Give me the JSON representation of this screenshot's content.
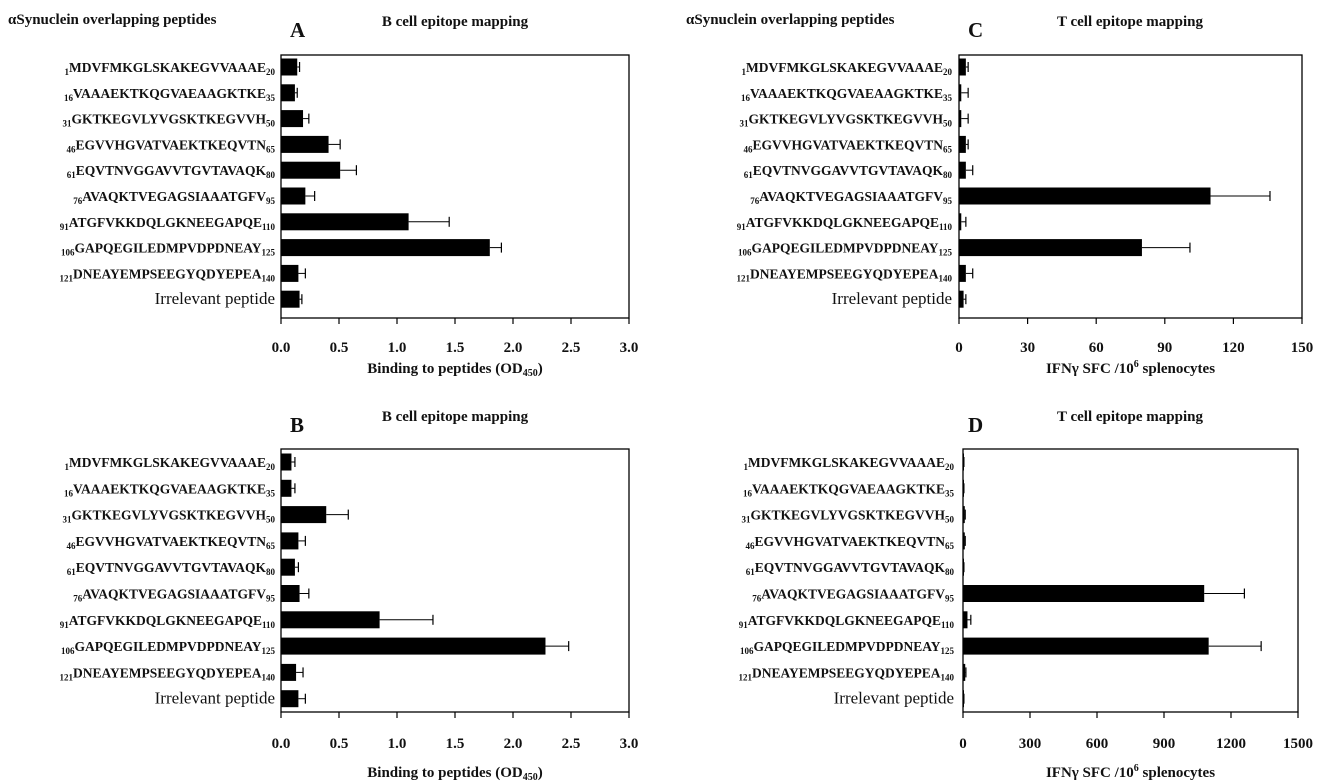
{
  "headers": [
    "αSynuclein overlapping peptides",
    "αSynuclein overlapping peptides"
  ],
  "peptide_labels": [
    {
      "start": "1",
      "seq": "MDVFMKGLSKAKEGVVAAAE",
      "end": "20"
    },
    {
      "start": "16",
      "seq": "VAAAEKTKQGVAEAAGKTKE",
      "end": "35"
    },
    {
      "start": "31",
      "seq": "GKTKEGVLYVGSKTKEGVVH",
      "end": "50"
    },
    {
      "start": "46",
      "seq": "EGVVHGVATVAEKTKEQVTN",
      "end": "65"
    },
    {
      "start": "61",
      "seq": "EQVTNVGGAVVTGVTAVAQK",
      "end": "80"
    },
    {
      "start": "76",
      "seq": "AVAQKTVEGAGSIAAATGFV",
      "end": "95"
    },
    {
      "start": "91",
      "seq": "ATGFVKKDQLGKNEEGAPQE",
      "end": "110"
    },
    {
      "start": "106",
      "seq": "GAPQEGILEDMPVDPDNEAY",
      "end": "125"
    },
    {
      "start": "121",
      "seq": "DNEAYEMPSEEGYQDYEPEA",
      "end": "140"
    },
    {
      "start": "",
      "seq": "Irrelevant peptide",
      "end": ""
    }
  ],
  "chart_data": [
    {
      "panel": "A",
      "type": "bar",
      "orientation": "horizontal",
      "title": "B cell epitope mapping",
      "xlabel": "Binding to peptides (OD",
      "xlabel_sub": "450",
      "xlabel_tail": ")",
      "xlim": [
        0,
        3.0
      ],
      "xticks": [
        "0.0",
        "0.5",
        "1.0",
        "1.5",
        "2.0",
        "2.5",
        "3.0"
      ],
      "values": [
        0.14,
        0.12,
        0.19,
        0.41,
        0.51,
        0.21,
        1.1,
        1.8,
        0.15,
        0.16
      ],
      "errors": [
        0.02,
        0.02,
        0.05,
        0.1,
        0.14,
        0.08,
        0.35,
        0.1,
        0.06,
        0.02
      ]
    },
    {
      "panel": "B",
      "type": "bar",
      "orientation": "horizontal",
      "title": "B cell epitope mapping",
      "xlabel": "Binding to peptides (OD",
      "xlabel_sub": "450",
      "xlabel_tail": ")",
      "xlim": [
        0,
        3.0
      ],
      "xticks": [
        "0.0",
        "0.5",
        "1.0",
        "1.5",
        "2.0",
        "2.5",
        "3.0"
      ],
      "values": [
        0.09,
        0.09,
        0.39,
        0.15,
        0.12,
        0.16,
        0.85,
        2.28,
        0.13,
        0.15
      ],
      "errors": [
        0.03,
        0.03,
        0.19,
        0.06,
        0.03,
        0.08,
        0.46,
        0.2,
        0.06,
        0.06
      ]
    },
    {
      "panel": "C",
      "type": "bar",
      "orientation": "horizontal",
      "title": "T cell epitope mapping",
      "xlabel": "IFNγ SFC /10",
      "xlabel_sup": "6",
      "xlabel_tail": " splenocytes",
      "xlim": [
        0,
        150
      ],
      "xticks": [
        "0",
        "30",
        "60",
        "90",
        "120",
        "150"
      ],
      "values": [
        3,
        1,
        1,
        3,
        3,
        110,
        1,
        80,
        3,
        2
      ],
      "errors": [
        1,
        3,
        3,
        1,
        3,
        26,
        2,
        21,
        3,
        1
      ]
    },
    {
      "panel": "D",
      "type": "bar",
      "orientation": "horizontal",
      "title": "T cell epitope mapping",
      "xlabel": "IFNγ SFC /10",
      "xlabel_sup": "6",
      "xlabel_tail": " splenocytes",
      "xlim": [
        0,
        1500
      ],
      "xticks": [
        "0",
        "300",
        "600",
        "900",
        "1200",
        "1500"
      ],
      "values": [
        3,
        3,
        8,
        8,
        3,
        1080,
        20,
        1100,
        10,
        3
      ],
      "errors": [
        1,
        1,
        2,
        2,
        1,
        180,
        15,
        235,
        3,
        1
      ]
    }
  ]
}
